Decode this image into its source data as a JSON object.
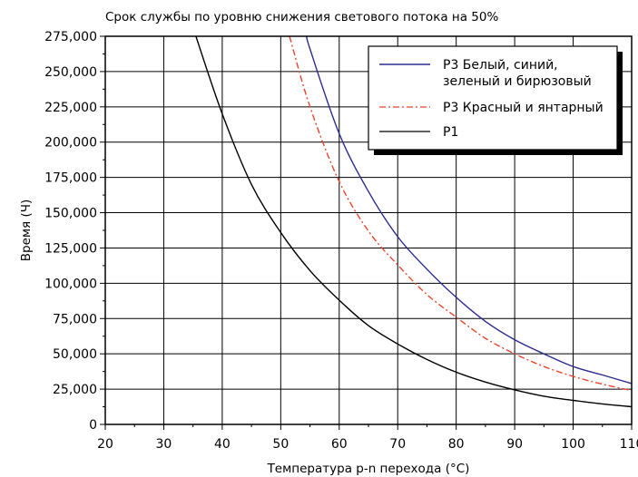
{
  "chart_data": {
    "type": "line",
    "title": "Срок службы по уровню снижения светового потока на 50%",
    "xlabel": "Температура p-n перехода (°C)",
    "ylabel": "Время (Ч)",
    "xlim": [
      20,
      110
    ],
    "ylim": [
      0,
      275000
    ],
    "x_ticks": [
      "20",
      "30",
      "40",
      "50",
      "60",
      "70",
      "80",
      "90",
      "100",
      "110"
    ],
    "y_ticks": [
      "0",
      "25,000",
      "50,000",
      "75,000",
      "100,000",
      "125,000",
      "150,000",
      "175,000",
      "200,000",
      "225,000",
      "250,000",
      "275,000"
    ],
    "grid": true,
    "legend_position": "top-right",
    "series": [
      {
        "name_lines": [
          "P3 Белый, синий,",
          "зеленый и бирюзовый"
        ],
        "color": "#2b2b8f",
        "dash": "solid",
        "points": [
          [
            54.5,
            275000
          ],
          [
            55,
            266000
          ],
          [
            60,
            206000
          ],
          [
            65,
            165000
          ],
          [
            70,
            133000
          ],
          [
            75,
            110000
          ],
          [
            80,
            90000
          ],
          [
            85,
            73000
          ],
          [
            90,
            60000
          ],
          [
            95,
            50000
          ],
          [
            100,
            41000
          ],
          [
            105,
            35000
          ],
          [
            110,
            29000
          ]
        ]
      },
      {
        "name": "P3 Красный и янтарный",
        "color": "#e8442c",
        "dash": "dashdot",
        "points": [
          [
            51.5,
            275000
          ],
          [
            55,
            225000
          ],
          [
            60,
            172000
          ],
          [
            65,
            137000
          ],
          [
            70,
            113000
          ],
          [
            75,
            92000
          ],
          [
            80,
            76000
          ],
          [
            85,
            61000
          ],
          [
            90,
            50000
          ],
          [
            95,
            41000
          ],
          [
            100,
            34000
          ],
          [
            105,
            28500
          ],
          [
            110,
            24000
          ]
        ]
      },
      {
        "name": "P1",
        "color": "#000000",
        "dash": "solid",
        "points": [
          [
            35.5,
            275000
          ],
          [
            40,
            220000
          ],
          [
            45,
            170000
          ],
          [
            50,
            136000
          ],
          [
            55,
            109000
          ],
          [
            60,
            88000
          ],
          [
            65,
            70000
          ],
          [
            70,
            57000
          ],
          [
            75,
            46000
          ],
          [
            80,
            37000
          ],
          [
            85,
            30000
          ],
          [
            90,
            24500
          ],
          [
            95,
            20000
          ],
          [
            100,
            17000
          ],
          [
            105,
            14500
          ],
          [
            110,
            12500
          ]
        ]
      }
    ]
  }
}
